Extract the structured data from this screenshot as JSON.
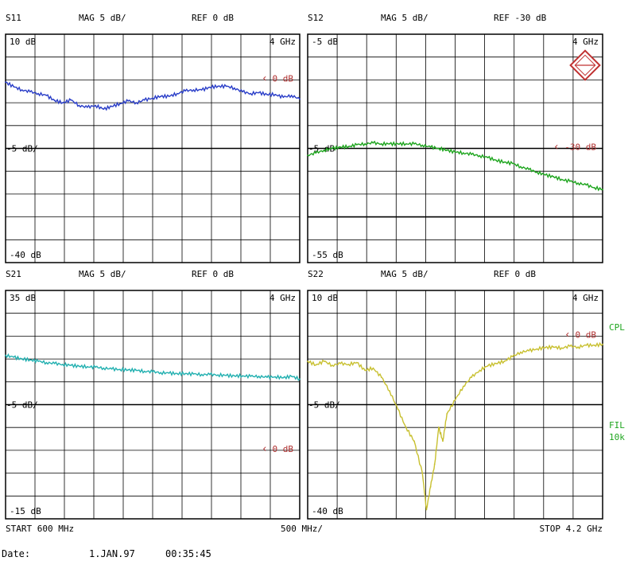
{
  "panels": [
    {
      "id": "s11",
      "param": "S11",
      "mag": "MAG 5 dB/",
      "ref": "REF 0 dB",
      "top_label": "10 dB",
      "mid_label": "-5 dB/",
      "bottom_label": "-40 dB",
      "freq_label": "4 GHz",
      "ref_marker": "0 dB",
      "trace_color": "#2a3ec8",
      "ylim": [
        -40,
        10
      ],
      "ref_value": 0,
      "ref_line_value": null
    },
    {
      "id": "s12",
      "param": "S12",
      "mag": "MAG 5 dB/",
      "ref": "REF -30 dB",
      "top_label": "-5 dB",
      "mid_label": "-5 dB",
      "bottom_label": "-55 dB",
      "freq_label": "4 GHz",
      "ref_marker": "-30 dB",
      "trace_color": "#1ea51e",
      "ylim": [
        -55,
        -5
      ],
      "ref_value": -30,
      "ref_line_value": -45,
      "logo": true
    },
    {
      "id": "s21",
      "param": "S21",
      "mag": "MAG 5 dB/",
      "ref": "REF 0 dB",
      "top_label": "35 dB",
      "mid_label": "-5 dB/",
      "bottom_label": "-15 dB",
      "freq_label": "4 GHz",
      "ref_marker": "0 dB",
      "trace_color": "#22b0b0",
      "ylim": [
        -15,
        35
      ],
      "ref_value": 0,
      "ref_line_value": null
    },
    {
      "id": "s22",
      "param": "S22",
      "mag": "MAG 5 dB/",
      "ref": "REF 0 dB",
      "top_label": "10 dB",
      "mid_label": "-5 dB/",
      "bottom_label": "-40 dB",
      "freq_label": "4 GHz",
      "ref_marker": "0 dB",
      "trace_color": "#c8c030",
      "ylim": [
        -40,
        10
      ],
      "ref_value": 0,
      "ref_line_value": null
    }
  ],
  "footer": {
    "start": "START  600 MHz",
    "span": "500 MHz/",
    "stop": "STOP 4.2 GHz"
  },
  "date_line": {
    "label": "Date:",
    "date": "1.JAN.97",
    "time": "00:35:45"
  },
  "side_labels": {
    "cpl": "CPL",
    "fil": "FIL",
    "fil_value": "10k"
  },
  "side_label_color": "#1ea51e",
  "marker_color": "#b03030",
  "chart_data": [
    {
      "type": "line",
      "title": "S11",
      "x_unit": "GHz",
      "xlim": [
        0.6,
        4.2
      ],
      "ylim": [
        -40,
        10
      ],
      "grid": true,
      "series": [
        {
          "x": [
            0.6,
            0.7,
            0.8,
            0.9,
            1.0,
            1.1,
            1.2,
            1.3,
            1.4,
            1.5,
            1.6,
            1.7,
            1.8,
            1.9,
            2.0,
            2.1,
            2.2,
            2.3,
            2.4,
            2.5,
            2.6,
            2.7,
            2.8,
            2.9,
            3.0,
            3.1,
            3.2,
            3.3,
            3.4,
            3.5,
            3.6,
            3.7,
            3.8,
            3.9,
            4.0,
            4.1,
            4.2
          ],
          "y": [
            -0.5,
            -1.5,
            -2.2,
            -2.6,
            -3.0,
            -3.4,
            -4.5,
            -5.0,
            -4.4,
            -5.6,
            -6.0,
            -5.6,
            -6.4,
            -5.8,
            -5.2,
            -4.6,
            -5.0,
            -4.4,
            -4.0,
            -3.6,
            -3.6,
            -3.0,
            -2.4,
            -2.2,
            -2.2,
            -1.6,
            -1.4,
            -1.4,
            -1.8,
            -2.6,
            -3.0,
            -2.8,
            -3.2,
            -3.2,
            -3.8,
            -3.4,
            -4.2
          ]
        }
      ]
    },
    {
      "type": "line",
      "title": "S12",
      "x_unit": "GHz",
      "xlim": [
        0.6,
        4.2
      ],
      "ylim": [
        -55,
        -5
      ],
      "grid": true,
      "series": [
        {
          "x": [
            0.6,
            0.7,
            0.8,
            0.9,
            1.0,
            1.1,
            1.2,
            1.3,
            1.4,
            1.5,
            1.6,
            1.7,
            1.8,
            1.9,
            2.0,
            2.1,
            2.2,
            2.3,
            2.4,
            2.5,
            2.6,
            2.7,
            2.8,
            2.9,
            3.0,
            3.1,
            3.2,
            3.3,
            3.4,
            3.5,
            3.6,
            3.7,
            3.8,
            3.9,
            4.0,
            4.1,
            4.2
          ],
          "y": [
            -31.5,
            -31.0,
            -30.4,
            -30.0,
            -29.7,
            -29.6,
            -29.2,
            -29.0,
            -28.8,
            -29.0,
            -29.0,
            -29.0,
            -29.0,
            -29.0,
            -29.3,
            -29.7,
            -30.0,
            -30.4,
            -30.8,
            -31.0,
            -31.3,
            -31.6,
            -32.0,
            -32.6,
            -33.0,
            -33.3,
            -34.0,
            -34.6,
            -35.2,
            -35.8,
            -36.2,
            -36.8,
            -37.2,
            -37.6,
            -38.0,
            -38.6,
            -39.0
          ]
        }
      ]
    },
    {
      "type": "line",
      "title": "S21",
      "x_unit": "GHz",
      "xlim": [
        0.6,
        4.2
      ],
      "ylim": [
        -15,
        35
      ],
      "grid": true,
      "series": [
        {
          "x": [
            0.6,
            0.7,
            0.8,
            0.9,
            1.0,
            1.1,
            1.2,
            1.3,
            1.4,
            1.5,
            1.6,
            1.7,
            1.8,
            1.9,
            2.0,
            2.1,
            2.2,
            2.3,
            2.4,
            2.5,
            2.6,
            2.7,
            2.8,
            2.9,
            3.0,
            3.1,
            3.2,
            3.3,
            3.4,
            3.5,
            3.6,
            3.7,
            3.8,
            3.9,
            4.0,
            4.1,
            4.2
          ],
          "y": [
            20.8,
            20.4,
            20.0,
            19.8,
            19.5,
            19.2,
            19.0,
            18.8,
            18.6,
            18.4,
            18.3,
            18.2,
            18.0,
            17.8,
            17.7,
            17.6,
            17.5,
            17.3,
            17.2,
            17.0,
            16.9,
            16.8,
            16.8,
            16.7,
            16.6,
            16.6,
            16.5,
            16.4,
            16.3,
            16.3,
            16.2,
            16.2,
            16.0,
            16.1,
            15.9,
            16.2,
            15.6
          ]
        }
      ]
    },
    {
      "type": "line",
      "title": "S22",
      "x_unit": "GHz",
      "xlim": [
        0.6,
        4.2
      ],
      "ylim": [
        -40,
        10
      ],
      "grid": true,
      "series": [
        {
          "x": [
            0.6,
            0.7,
            0.8,
            0.9,
            1.0,
            1.1,
            1.2,
            1.3,
            1.4,
            1.5,
            1.6,
            1.7,
            1.8,
            1.9,
            2.0,
            2.05,
            2.1,
            2.15,
            2.2,
            2.25,
            2.3,
            2.4,
            2.5,
            2.6,
            2.7,
            2.8,
            2.9,
            3.0,
            3.1,
            3.2,
            3.3,
            3.4,
            3.5,
            3.6,
            3.7,
            3.8,
            3.9,
            4.0,
            4.1,
            4.2
          ],
          "y": [
            -5.5,
            -6.3,
            -5.5,
            -6.4,
            -6.0,
            -6.2,
            -5.8,
            -7.5,
            -7.0,
            -9.0,
            -12.0,
            -16.0,
            -20.0,
            -23.0,
            -30.0,
            -38.0,
            -33.0,
            -28.0,
            -20.0,
            -23.0,
            -17.0,
            -14.0,
            -11.0,
            -9.0,
            -7.5,
            -6.5,
            -6.0,
            -5.5,
            -4.5,
            -3.5,
            -3.2,
            -2.8,
            -2.5,
            -2.4,
            -2.6,
            -2.2,
            -2.4,
            -2.0,
            -2.0,
            -1.8
          ]
        }
      ]
    }
  ]
}
